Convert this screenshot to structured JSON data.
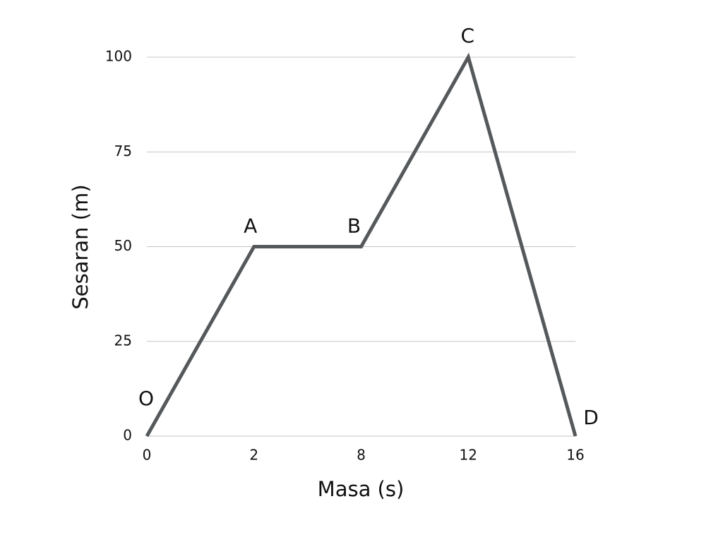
{
  "chart_data": {
    "type": "line",
    "x_label": "Masa (s)",
    "y_label": "Sesaran (m)",
    "categories": [
      "0",
      "2",
      "8",
      "12",
      "16"
    ],
    "values": [
      0,
      50,
      50,
      100,
      0
    ],
    "point_labels": [
      "O",
      "A",
      "B",
      "C",
      "D"
    ],
    "color": "#55595b",
    "ylim": [
      0,
      100
    ],
    "yticks": [
      0,
      25,
      50,
      75,
      100
    ],
    "grid": true
  }
}
